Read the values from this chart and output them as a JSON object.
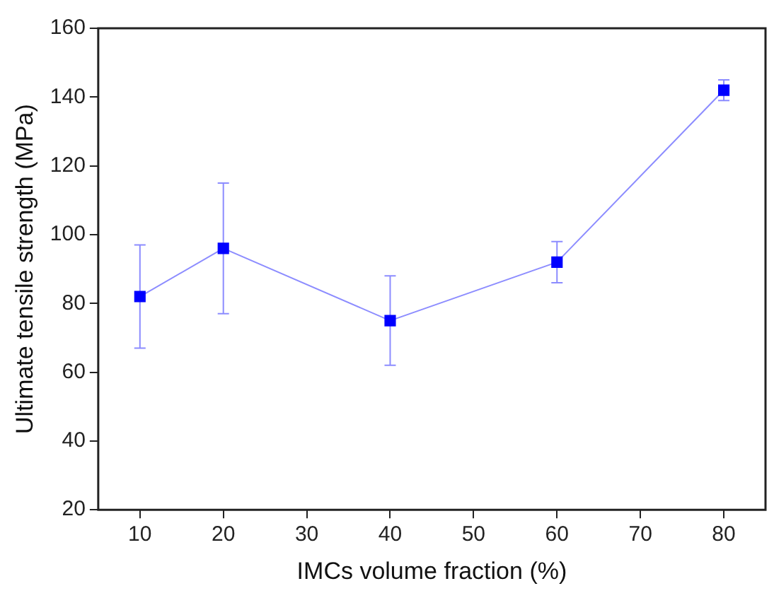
{
  "chart_data": {
    "type": "line",
    "xlabel": "IMCs volume fraction (%)",
    "ylabel": "Ultimate tensile strength (MPa)",
    "x": [
      10,
      20,
      40,
      60,
      80
    ],
    "series": [
      {
        "color": "#0000ff",
        "values": [
          82,
          96,
          75,
          92,
          142
        ],
        "errors": [
          [
            67,
            97
          ],
          [
            77,
            115
          ],
          [
            62,
            88
          ],
          [
            86,
            98
          ],
          [
            139,
            145
          ]
        ]
      }
    ],
    "xlim": [
      5,
      85
    ],
    "xticks": [
      10,
      20,
      30,
      40,
      50,
      60,
      70,
      80
    ],
    "ylim": [
      20,
      160
    ],
    "yticks": [
      20,
      40,
      60,
      80,
      100,
      120,
      140,
      160
    ],
    "grid": false,
    "legend": false,
    "marker": "square",
    "line_style": "solid"
  }
}
